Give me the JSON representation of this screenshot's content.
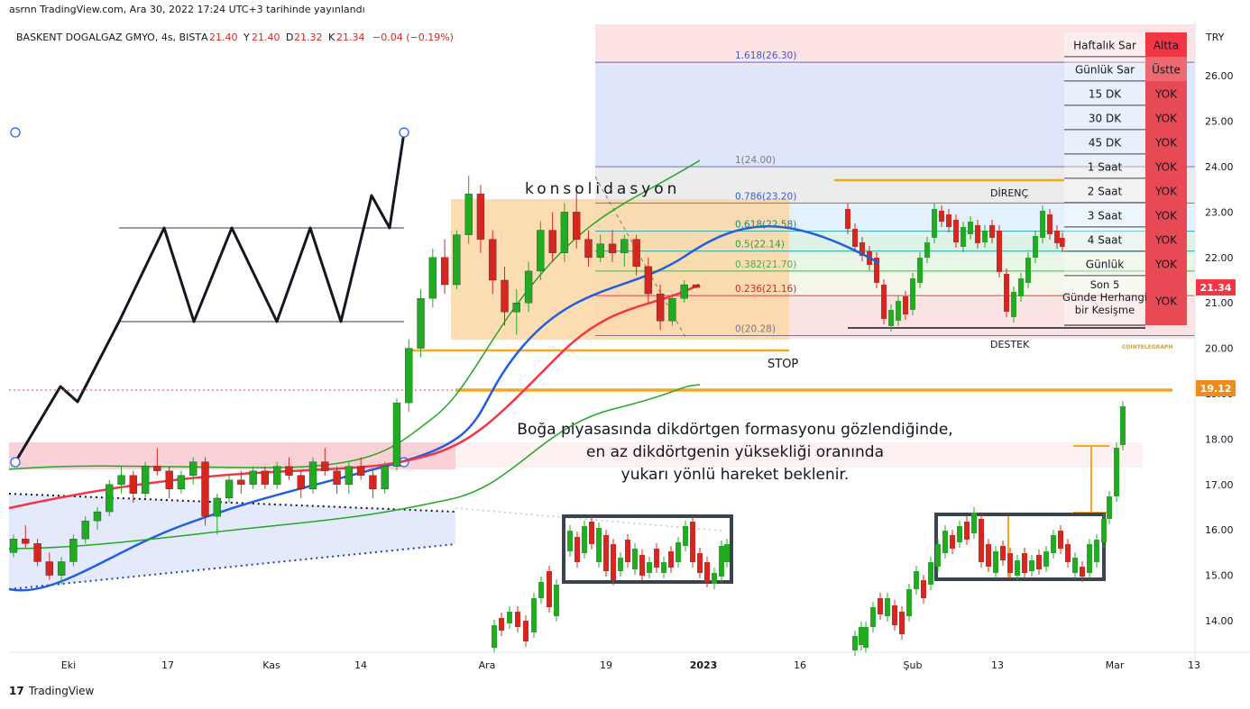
{
  "header": {
    "published": "asrnn TradingView.com, Ara 30, 2022 17:24 UTC+3 tarihinde yayınlandı"
  },
  "legend": {
    "symbol": "BASKENT DOGALGAZ GMYO, 4s, BIST",
    "ohlc": [
      {
        "k": "A",
        "v": "21.40"
      },
      {
        "k": "Y",
        "v": "21.40"
      },
      {
        "k": "D",
        "v": "21.32"
      },
      {
        "k": "K",
        "v": "21.34"
      }
    ],
    "change": "−0.04 (−0.19%)"
  },
  "colors": {
    "up": "#22ab22",
    "down": "#d5271f",
    "fib": "#3179f5",
    "orange": "#f4a723",
    "ma_blue": "#1f5fe0",
    "ma_red": "#f23645",
    "ma_green": "#22a822",
    "badge_red": "#f23645",
    "badge_orange": "#f08c1c",
    "table_red": "#e84a55"
  },
  "chart_data": {
    "type": "candlestick",
    "currency": "TRY",
    "ylim": [
      13.5,
      27.0
    ],
    "y_ticks": [
      "14.00",
      "15.00",
      "16.00",
      "17.00",
      "18.00",
      "19.00",
      "20.00",
      "21.00",
      "22.00",
      "23.00",
      "24.00",
      "25.00",
      "26.00"
    ],
    "x_ticks": [
      "Eki",
      "17",
      "Kas",
      "14",
      "Ara",
      "19",
      "2023",
      "16",
      "Şub",
      "13",
      "Mar",
      "13"
    ],
    "current_price": "21.34",
    "horizontal_line_price": "19.12",
    "candles": [
      [
        15.5,
        15.9,
        15.4,
        15.8
      ],
      [
        15.8,
        16.1,
        15.6,
        15.7
      ],
      [
        15.7,
        15.8,
        15.2,
        15.3
      ],
      [
        15.3,
        15.5,
        14.9,
        15.0
      ],
      [
        15.0,
        15.4,
        14.8,
        15.3
      ],
      [
        15.3,
        15.9,
        15.2,
        15.8
      ],
      [
        15.8,
        16.3,
        15.7,
        16.2
      ],
      [
        16.2,
        16.5,
        16.0,
        16.4
      ],
      [
        16.4,
        17.1,
        16.3,
        17.0
      ],
      [
        17.0,
        17.4,
        16.8,
        17.2
      ],
      [
        17.2,
        17.3,
        16.6,
        16.8
      ],
      [
        16.8,
        17.5,
        16.7,
        17.4
      ],
      [
        17.4,
        17.8,
        17.2,
        17.3
      ],
      [
        17.3,
        17.4,
        16.7,
        16.9
      ],
      [
        16.9,
        17.3,
        16.8,
        17.2
      ],
      [
        17.2,
        17.6,
        17.0,
        17.5
      ],
      [
        17.5,
        17.6,
        16.1,
        16.3
      ],
      [
        16.3,
        16.8,
        15.9,
        16.7
      ],
      [
        16.7,
        17.2,
        16.6,
        17.1
      ],
      [
        17.1,
        17.3,
        16.8,
        17.0
      ],
      [
        17.0,
        17.4,
        16.9,
        17.3
      ],
      [
        17.3,
        17.4,
        16.9,
        17.0
      ],
      [
        17.0,
        17.5,
        16.9,
        17.4
      ],
      [
        17.4,
        17.6,
        17.1,
        17.2
      ],
      [
        17.2,
        17.3,
        16.7,
        16.9
      ],
      [
        16.9,
        17.6,
        16.8,
        17.5
      ],
      [
        17.5,
        17.8,
        17.2,
        17.3
      ],
      [
        17.3,
        17.4,
        16.8,
        17.0
      ],
      [
        17.0,
        17.5,
        16.8,
        17.4
      ],
      [
        17.4,
        17.6,
        17.1,
        17.2
      ],
      [
        17.2,
        17.3,
        16.7,
        16.9
      ],
      [
        16.9,
        17.5,
        16.8,
        17.4
      ],
      [
        17.4,
        18.9,
        17.3,
        18.8
      ],
      [
        18.8,
        20.2,
        18.6,
        20.0
      ],
      [
        20.0,
        21.3,
        19.8,
        21.1
      ],
      [
        21.1,
        22.2,
        20.9,
        22.0
      ],
      [
        22.0,
        22.4,
        21.2,
        21.4
      ],
      [
        21.4,
        22.6,
        21.3,
        22.5
      ],
      [
        22.5,
        23.8,
        22.3,
        23.4
      ],
      [
        23.4,
        23.6,
        22.1,
        22.4
      ],
      [
        22.4,
        22.6,
        21.2,
        21.5
      ],
      [
        21.5,
        21.8,
        20.5,
        20.8
      ],
      [
        20.8,
        21.3,
        20.3,
        21.0
      ],
      [
        21.0,
        21.9,
        20.8,
        21.7
      ],
      [
        21.7,
        22.8,
        21.5,
        22.6
      ],
      [
        22.6,
        23.0,
        21.9,
        22.1
      ],
      [
        22.1,
        23.2,
        21.9,
        23.0
      ],
      [
        23.0,
        23.6,
        22.2,
        22.4
      ],
      [
        22.4,
        22.6,
        21.8,
        22.0
      ],
      [
        22.0,
        22.5,
        21.9,
        22.3
      ],
      [
        22.3,
        22.6,
        21.9,
        22.1
      ],
      [
        22.1,
        22.5,
        21.8,
        22.4
      ],
      [
        22.4,
        22.5,
        21.6,
        21.8
      ],
      [
        21.8,
        22.0,
        21.0,
        21.2
      ],
      [
        21.2,
        21.4,
        20.4,
        20.6
      ],
      [
        20.6,
        21.2,
        20.5,
        21.1
      ],
      [
        21.1,
        21.5,
        21.0,
        21.4
      ],
      [
        21.4,
        21.4,
        21.32,
        21.34
      ]
    ]
  },
  "fib_levels": [
    {
      "label": "1.618(26.30)",
      "price": 26.3
    },
    {
      "label": "1(24.00)",
      "price": 24.0
    },
    {
      "label": "0.786(23.20)",
      "price": 23.2
    },
    {
      "label": "0.618(22.58)",
      "price": 22.58
    },
    {
      "label": "0.5(22.14)",
      "price": 22.14
    },
    {
      "label": "0.382(21.70)",
      "price": 21.7
    },
    {
      "label": "0.236(21.16)",
      "price": 21.16
    },
    {
      "label": "0(20.28)",
      "price": 20.28
    }
  ],
  "annotations": {
    "consolidation": "konsolidasyon",
    "stop": "STOP",
    "resistance": "DİRENÇ",
    "support": "DESTEK",
    "watermark": "COINTELEGRAPH",
    "explanation": [
      "Boğa piyasasında dikdörtgen formasyonu gözlendiğinde,",
      "en az dikdörtgenin yüksekliği oranında",
      "yukarı yönlü hareket beklenir."
    ]
  },
  "signal_table": [
    {
      "label": "Haftalık Sar",
      "value": "Altta"
    },
    {
      "label": "Günlük Sar",
      "value": "Üstte"
    },
    {
      "label": "15 DK",
      "value": "YOK"
    },
    {
      "label": "30 DK",
      "value": "YOK"
    },
    {
      "label": "45 DK",
      "value": "YOK"
    },
    {
      "label": "1 Saat",
      "value": "YOK"
    },
    {
      "label": "2 Saat",
      "value": "YOK"
    },
    {
      "label": "3 Saat",
      "value": "YOK"
    },
    {
      "label": "4 Saat",
      "value": "YOK"
    },
    {
      "label": "Günlük",
      "value": "YOK"
    },
    {
      "label": "Son 5 Günde Herhangi bir Kesişme",
      "value": "YOK"
    }
  ],
  "footer": {
    "brand": "TradingView"
  }
}
